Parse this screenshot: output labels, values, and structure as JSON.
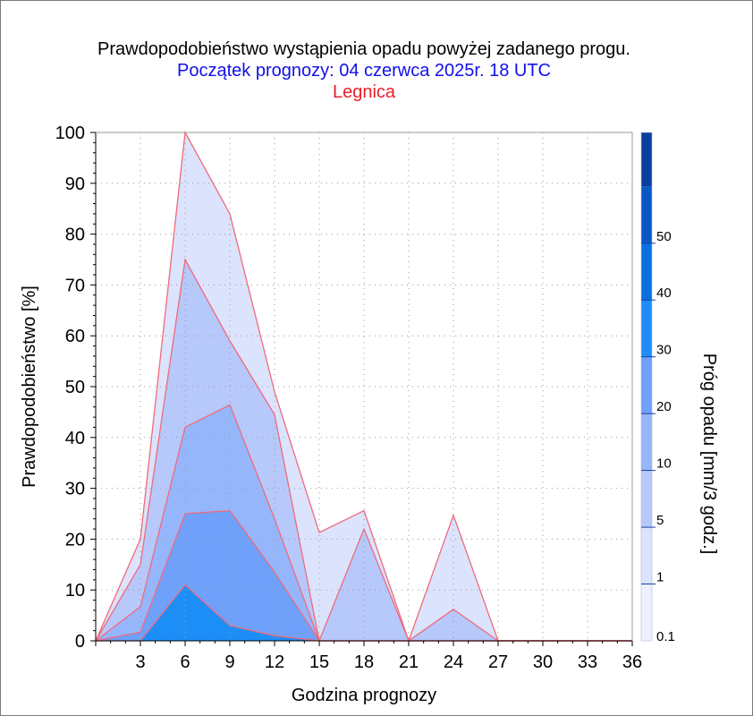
{
  "chart_data": {
    "type": "area",
    "title": "Prawdopodobieństwo wystąpienia opadu powyżej zadanego progu.",
    "subtitle": "Początek prognozy: 04 czerwca 2025r. 18 UTC",
    "location": "Legnica",
    "xlabel": "Godzina prognozy",
    "ylabel": "Prawdopodobieństwo [%]",
    "colorbar_label": "Próg opadu [mm/3 godz.]",
    "xlim": [
      0,
      36
    ],
    "ylim": [
      0,
      100
    ],
    "x_ticks": [
      3,
      6,
      9,
      12,
      15,
      18,
      21,
      24,
      27,
      30,
      33,
      36
    ],
    "y_ticks": [
      0,
      10,
      20,
      30,
      40,
      50,
      60,
      70,
      80,
      90,
      100
    ],
    "grid": true,
    "outline_color": "#f06a7a",
    "x": [
      0,
      3,
      6,
      9,
      12,
      15,
      18,
      21,
      24,
      27,
      30,
      33,
      36
    ],
    "series": [
      {
        "threshold": "0.1",
        "color": "#dce3fc",
        "values": [
          0,
          20,
          100,
          84,
          49,
          21.3,
          25.6,
          0,
          24.7,
          0,
          0,
          0,
          0
        ]
      },
      {
        "threshold": "1",
        "color": "#b7c8fb",
        "values": [
          0,
          15,
          75,
          59,
          44.5,
          0,
          22,
          0,
          6.2,
          0,
          0,
          0,
          0
        ]
      },
      {
        "threshold": "5",
        "color": "#96b6fb",
        "values": [
          0,
          6.7,
          42,
          46.4,
          24,
          0,
          0,
          0,
          0,
          0,
          0,
          0,
          0
        ]
      },
      {
        "threshold": "10",
        "color": "#6fa0fa",
        "values": [
          0,
          1.7,
          25,
          25.6,
          13.5,
          0,
          0,
          0,
          0,
          0,
          0,
          0,
          0
        ]
      },
      {
        "threshold": "20",
        "color": "#1e8ef7",
        "values": [
          0,
          0,
          11,
          3,
          1,
          0,
          0,
          0,
          0,
          0,
          0,
          0,
          0
        ]
      }
    ],
    "colorbar": {
      "labels": [
        "0.1",
        "1",
        "5",
        "10",
        "20",
        "30",
        "40",
        "50"
      ],
      "colors": [
        "#edf1fe",
        "#dce3fc",
        "#b7c8fb",
        "#96b6fb",
        "#6fa0fa",
        "#1e8ef7",
        "#0a6fe0",
        "#0757c6",
        "#0a3fa0"
      ]
    },
    "text_colors": {
      "title": "#000000",
      "subtitle": "#1010e8",
      "location": "#e8202a"
    }
  }
}
